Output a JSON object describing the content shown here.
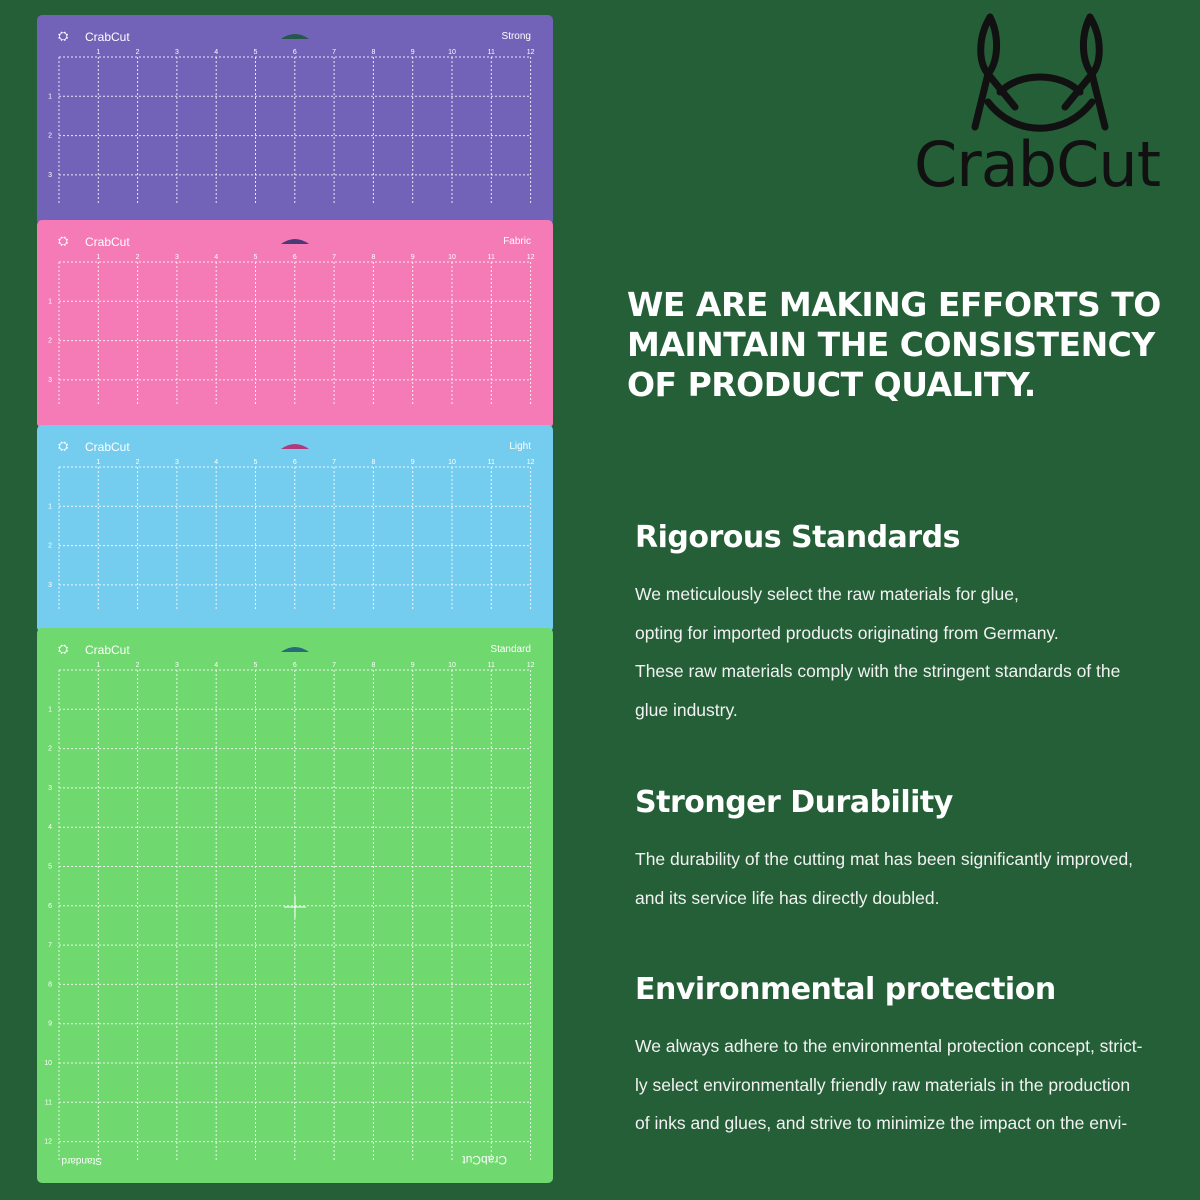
{
  "logo": {
    "brand": "CrabCut"
  },
  "headline": {
    "lines": [
      "WE ARE MAKING EFFORTS TO",
      "MAINTAIN THE CONSISTENCY",
      "OF PRODUCT QUALITY."
    ]
  },
  "mats": [
    {
      "brand": "CrabCut",
      "label": "Strong"
    },
    {
      "brand": "CrabCut",
      "label": "Fabric"
    },
    {
      "brand": "CrabCut",
      "label": "Light"
    },
    {
      "brand": "CrabCut",
      "label": "Standard"
    }
  ],
  "ruler": {
    "top": [
      "1",
      "2",
      "3",
      "4",
      "5",
      "6",
      "7",
      "8",
      "9",
      "10",
      "11",
      "12"
    ],
    "side": [
      "1",
      "2",
      "3",
      "4",
      "5",
      "6",
      "7",
      "8",
      "9",
      "10",
      "11",
      "12"
    ]
  },
  "sections": [
    {
      "title": "Rigorous Standards",
      "lines": [
        "We meticulously select the raw materials for glue,",
        "opting for imported products originating from Germany.",
        "These raw materials comply with the stringent standards of the",
        "glue industry."
      ]
    },
    {
      "title": "Stronger Durability",
      "lines": [
        "The durability of the cutting mat has been significantly improved,",
        "and its service life has directly doubled."
      ]
    },
    {
      "title": "Environmental protection",
      "lines": [
        "We always adhere to the environmental protection concept, strict-",
        "ly select environmentally friendly raw materials in the production",
        "of inks and glues, and strive to minimize the impact on the envi-"
      ]
    }
  ]
}
